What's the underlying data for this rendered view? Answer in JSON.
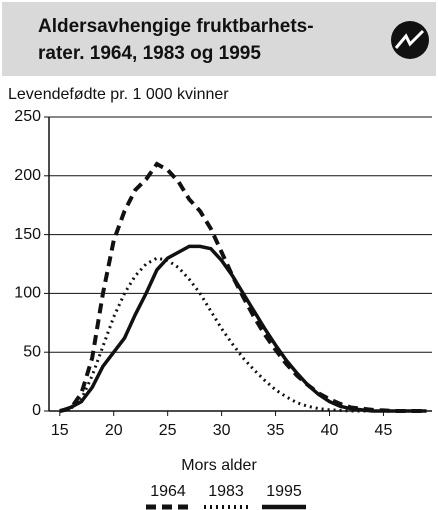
{
  "chart_data": {
    "type": "line",
    "title": [
      "Aldersavhengige fruktbarhets-",
      "rater. 1964, 1983 og 1995"
    ],
    "y_label": "Levendefødte pr. 1 000 kvinner",
    "x_label": "Mors alder",
    "x": [
      15,
      16,
      17,
      18,
      19,
      20,
      21,
      22,
      23,
      24,
      25,
      26,
      27,
      28,
      29,
      30,
      31,
      32,
      33,
      34,
      35,
      36,
      37,
      38,
      39,
      40,
      41,
      42,
      43,
      44,
      45,
      46,
      47,
      48,
      49
    ],
    "series": [
      {
        "name": "1964",
        "color": "#111111",
        "line_style": "dashed",
        "values": [
          0,
          2,
          15,
          45,
          100,
          145,
          170,
          188,
          197,
          210,
          205,
          195,
          180,
          170,
          155,
          135,
          115,
          97,
          80,
          65,
          52,
          40,
          30,
          22,
          15,
          10,
          6,
          3,
          2,
          1,
          0.5,
          0,
          0,
          0,
          0
        ]
      },
      {
        "name": "1983",
        "color": "#111111",
        "line_style": "dotted",
        "values": [
          0,
          2,
          10,
          30,
          55,
          80,
          100,
          115,
          125,
          130,
          128,
          122,
          112,
          100,
          85,
          70,
          57,
          45,
          35,
          26,
          18,
          12,
          7,
          4,
          2,
          1,
          0.5,
          0,
          0,
          0,
          0,
          0,
          0,
          0,
          0
        ]
      },
      {
        "name": "1995",
        "color": "#111111",
        "line_style": "solid",
        "values": [
          0,
          3,
          8,
          20,
          38,
          50,
          62,
          82,
          100,
          120,
          130,
          135,
          140,
          140,
          138,
          128,
          115,
          100,
          85,
          70,
          56,
          43,
          32,
          22,
          14,
          8,
          4,
          2,
          1,
          0,
          0,
          0,
          0,
          0,
          0
        ]
      }
    ],
    "xlim": [
      14,
      49.5
    ],
    "xticks": [
      15,
      20,
      25,
      30,
      35,
      40,
      45
    ],
    "ylim": [
      0,
      250
    ],
    "yticks": [
      0,
      50,
      100,
      150,
      200,
      250
    ],
    "grid": true
  }
}
